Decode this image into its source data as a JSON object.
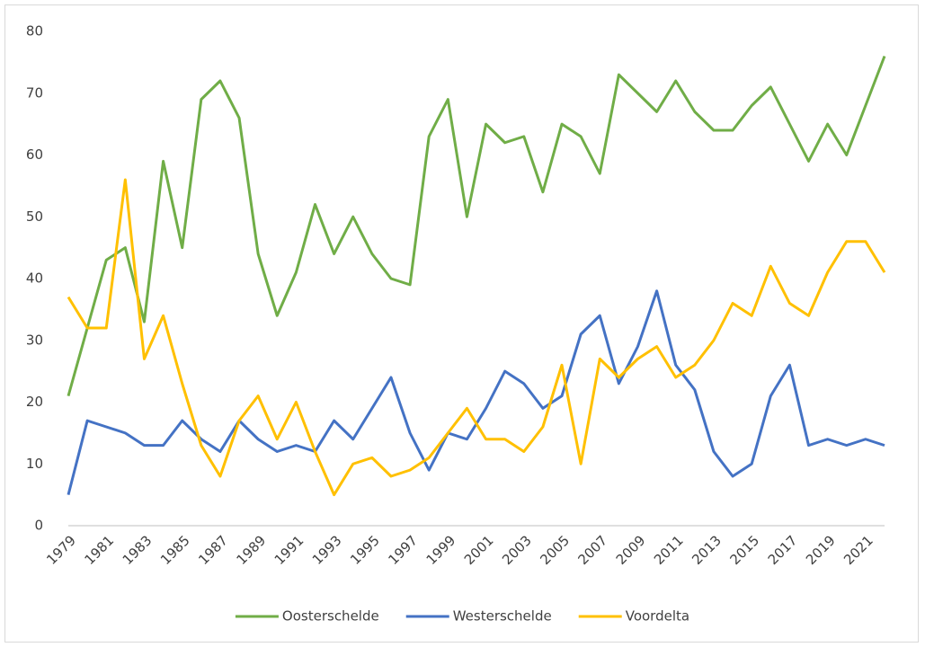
{
  "chart_data": {
    "type": "line",
    "categories": [
      "1979",
      null,
      "1981",
      null,
      "1983",
      null,
      "1985",
      null,
      "1987",
      null,
      "1989",
      null,
      "1991",
      null,
      "1993",
      null,
      "1995",
      null,
      "1997",
      null,
      "1999",
      null,
      "2001",
      null,
      "2003",
      null,
      "2005",
      null,
      "2007",
      null,
      "2009",
      null,
      "2011",
      null,
      "2013",
      null,
      "2015",
      null,
      "2017",
      null,
      "2019",
      null,
      "2021",
      null
    ],
    "series": [
      {
        "name": "Oosterschelde",
        "color": "#70ad47",
        "values": [
          21,
          32,
          43,
          45,
          33,
          59,
          45,
          69,
          72,
          66,
          44,
          34,
          41,
          52,
          44,
          50,
          44,
          40,
          39,
          63,
          69,
          50,
          65,
          62,
          63,
          54,
          65,
          63,
          57,
          73,
          70,
          67,
          72,
          67,
          64,
          64,
          68,
          71,
          65,
          59,
          65,
          60,
          68,
          76
        ]
      },
      {
        "name": "Westerschelde",
        "color": "#4472c4",
        "values": [
          5,
          17,
          16,
          15,
          13,
          13,
          17,
          14,
          12,
          17,
          14,
          12,
          13,
          12,
          17,
          14,
          19,
          24,
          15,
          9,
          15,
          14,
          19,
          25,
          23,
          19,
          21,
          31,
          34,
          23,
          29,
          38,
          26,
          22,
          12,
          8,
          10,
          21,
          26,
          13,
          14,
          13,
          14,
          13
        ]
      },
      {
        "name": "Voordelta",
        "color": "#ffc000",
        "values": [
          37,
          32,
          32,
          56,
          27,
          34,
          23,
          13,
          8,
          17,
          21,
          14,
          20,
          12,
          5,
          10,
          11,
          8,
          9,
          11,
          15,
          19,
          14,
          14,
          12,
          16,
          26,
          10,
          27,
          24,
          27,
          29,
          24,
          26,
          30,
          36,
          34,
          42,
          36,
          34,
          41,
          46,
          46,
          41
        ]
      }
    ],
    "ylim": [
      0,
      80
    ],
    "yticks": [
      0,
      10,
      20,
      30,
      40,
      50,
      60,
      70,
      80
    ],
    "grid": false,
    "legend": "bottom"
  }
}
